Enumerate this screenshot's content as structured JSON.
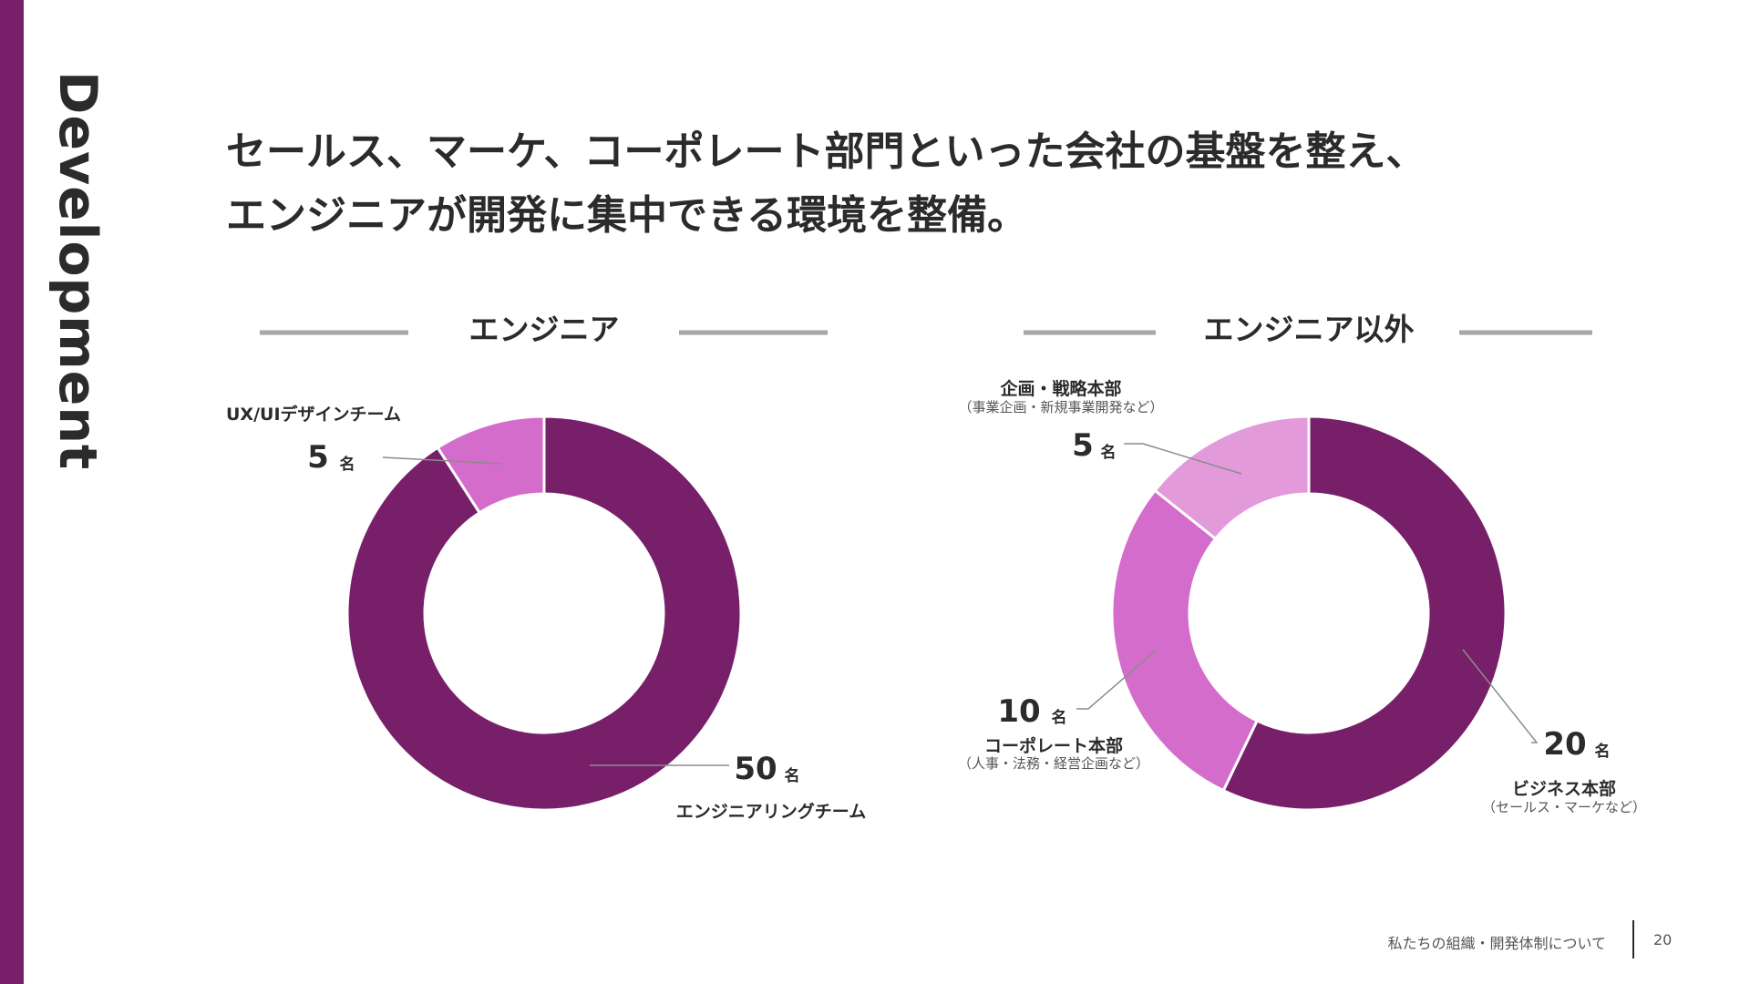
{
  "colors": {
    "accent": "#771f69",
    "segment_dark": "#771f69",
    "segment_mid": "#d46ccb",
    "segment_light": "#e29adb",
    "rule_gray": "#a6a6a6",
    "leader_gray": "#8c8c8c"
  },
  "sidebar": {
    "label": "Development"
  },
  "headline": {
    "line1": "セールス、マーケ、コーポレート部門といった会社の基盤を整え、",
    "line2": "エンジニアが開発に集中できる環境を整備。"
  },
  "chart_data": [
    {
      "type": "pie",
      "title": "エンジニア",
      "unit": "名",
      "slices": [
        {
          "label": "エンジニアリングチーム",
          "value": 50,
          "color": "#771f69"
        },
        {
          "label": "UX/UIデザインチーム",
          "value": 5,
          "color": "#d46ccb"
        }
      ]
    },
    {
      "type": "pie",
      "title": "エンジニア以外",
      "unit": "名",
      "slices": [
        {
          "label": "ビジネス本部",
          "sublabel": "（セールス・マーケなど）",
          "value": 20,
          "color": "#771f69"
        },
        {
          "label": "コーポレート本部",
          "sublabel": "（人事・法務・経営企画など）",
          "value": 10,
          "color": "#d46ccb"
        },
        {
          "label": "企画・戦略本部",
          "sublabel": "（事業企画・新規事業開発など）",
          "value": 5,
          "color": "#e29adb"
        }
      ]
    }
  ],
  "footer": {
    "text": "私たちの組織・開発体制について",
    "page": "20"
  }
}
